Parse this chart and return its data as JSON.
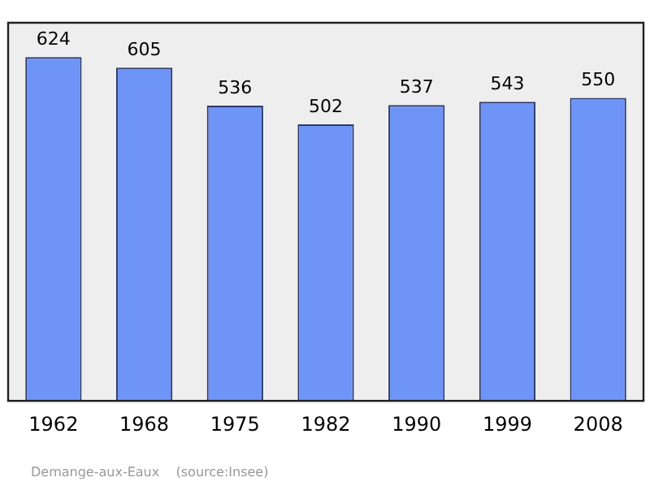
{
  "chart_data": {
    "type": "bar",
    "categories": [
      "1962",
      "1968",
      "1975",
      "1982",
      "1990",
      "1999",
      "2008"
    ],
    "values": [
      624,
      605,
      536,
      502,
      537,
      543,
      550
    ],
    "color": "#6f94f7",
    "data_labels": true,
    "grid": false,
    "legend": false,
    "tick_labels": "x",
    "annotations": [
      "Demange-aux-Eaux    (source:Insee)"
    ]
  }
}
